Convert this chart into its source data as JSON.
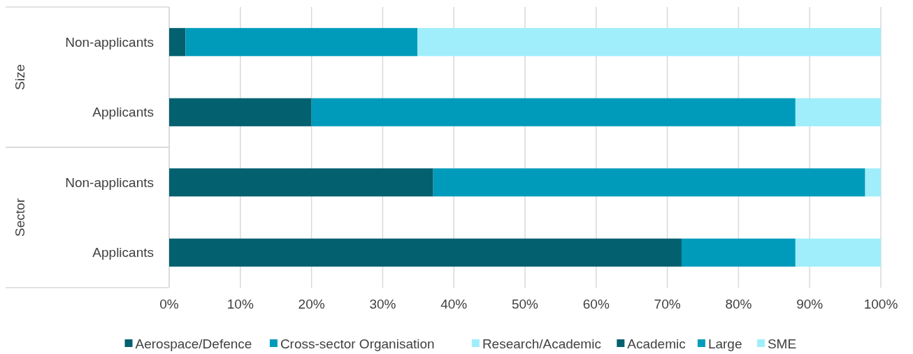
{
  "chart_data": {
    "type": "bar",
    "orientation": "horizontal",
    "stacked": true,
    "categories": [
      "Non-applicants",
      "Applicants",
      "Non-applicants",
      "Applicants"
    ],
    "series": [
      {
        "name": "Aerospace/Defence",
        "color": "#02606f",
        "values": [
          null,
          null,
          37.1,
          72
        ]
      },
      {
        "name": "Cross-sector Organisation",
        "color": "#009bbb",
        "values": [
          null,
          null,
          60.7,
          16
        ]
      },
      {
        "name": "Research/Academic",
        "color": "#a0eefb",
        "values": [
          null,
          null,
          2.2,
          12
        ]
      },
      {
        "name": "Academic",
        "color": "#02606f",
        "values": [
          2.3,
          20,
          null,
          null
        ]
      },
      {
        "name": "Large",
        "color": "#009bbb",
        "values": [
          32.6,
          68,
          null,
          null
        ]
      },
      {
        "name": "SME",
        "color": "#a0eefb",
        "values": [
          65.1,
          12,
          null,
          null
        ]
      }
    ],
    "xlim": [
      0,
      100
    ],
    "xticks": [
      {
        "value": 0,
        "label": "0%"
      },
      {
        "value": 10,
        "label": "10%"
      },
      {
        "value": 20,
        "label": "20%"
      },
      {
        "value": 30,
        "label": "30%"
      },
      {
        "value": 40,
        "label": "40%"
      },
      {
        "value": 50,
        "label": "50%"
      },
      {
        "value": 60,
        "label": "60%"
      },
      {
        "value": 70,
        "label": "70%"
      },
      {
        "value": 80,
        "label": "80%"
      },
      {
        "value": 90,
        "label": "90%"
      },
      {
        "value": 100,
        "label": "100%"
      }
    ],
    "annotations": [
      "Size",
      "Sector"
    ],
    "grid": "x",
    "legend": "bottom"
  }
}
